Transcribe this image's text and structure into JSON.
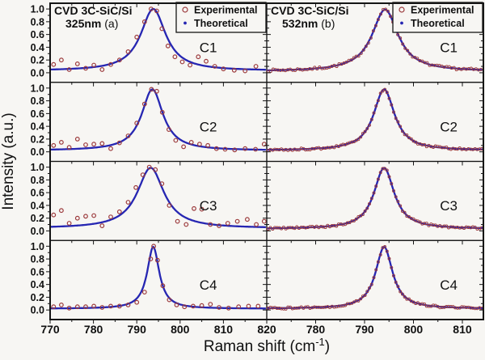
{
  "figure": {
    "y_axis_title": "Intensity (a.u.)",
    "x_axis_title_main": "Raman shift (cm",
    "x_axis_title_sup": "-1",
    "x_axis_title_close": ")"
  },
  "legend": {
    "entries": [
      {
        "label": "Experimental",
        "marker": "open-circle-icon"
      },
      {
        "label": "Theoretical",
        "marker": "dot-icon"
      }
    ]
  },
  "colors": {
    "experimental": "#9c3a3c",
    "theoretical": "#2626b2",
    "frame": "#151515",
    "text": "#101010",
    "legend_border": "#151515",
    "background": "#f7f6f3"
  },
  "chart_data": {
    "type": "line",
    "title": "",
    "ylabel": "Intensity (a.u.)",
    "xlabel": "Raman shift (cm-1)",
    "y_domain": [
      -0.15,
      1.09
    ],
    "y_ticks": [
      0.0,
      0.2,
      0.4,
      0.6,
      0.8,
      1.0
    ],
    "y_tick_labels": [
      "0.0",
      "0.2",
      "0.4",
      "0.6",
      "0.8",
      "1.0"
    ],
    "y_minor_step": 0.1,
    "row_labels": [
      "C1",
      "C2",
      "C3",
      "C4"
    ],
    "columns": [
      {
        "key": "a",
        "title_line1": "CVD 3C-SiC/Si",
        "title_line2": "325nm",
        "panel_tag": "(a)",
        "x_domain": [
          770,
          820
        ],
        "x_major_ticks": [
          770,
          780,
          790,
          800,
          810,
          820
        ],
        "x_tick_labels": [
          "770",
          "780",
          "790",
          "800",
          "810",
          "820"
        ],
        "x_minor_step": 5,
        "has_y_labels": true,
        "experimental_style": "sparse"
      },
      {
        "key": "b",
        "title_line1": "CVD 3C-SiC/Si",
        "title_line2": "532nm",
        "panel_tag": "(b)",
        "x_domain": [
          770,
          814.3
        ],
        "x_major_ticks": [
          780,
          790,
          800,
          810
        ],
        "x_tick_labels": [
          "780",
          "790",
          "800",
          "810"
        ],
        "x_minor_step": 5,
        "has_y_labels": false,
        "experimental_style": "dense"
      }
    ],
    "panels": [
      {
        "row": "C1",
        "column": "a",
        "lorentzian": {
          "center": 793.8,
          "fwhm": 7.0,
          "amplitude": 0.97,
          "baseline": 0.03
        },
        "experimental_points": [
          [
            770.8,
            0.13
          ],
          [
            772.6,
            0.2
          ],
          [
            774.4,
            0.05
          ],
          [
            776.3,
            0.14
          ],
          [
            778.2,
            0.07
          ],
          [
            780.1,
            0.12
          ],
          [
            782,
            0.05
          ],
          [
            784,
            0.13
          ],
          [
            786,
            0.2
          ],
          [
            788,
            0.33
          ],
          [
            790,
            0.56
          ],
          [
            791.8,
            0.8
          ],
          [
            793.3,
            1.0
          ],
          [
            794.6,
            0.97
          ],
          [
            795.8,
            0.69
          ],
          [
            797.2,
            0.42
          ],
          [
            798.8,
            0.25
          ],
          [
            800.5,
            0.17
          ],
          [
            802.3,
            0.12
          ],
          [
            804.2,
            0.25
          ],
          [
            806,
            0.18
          ],
          [
            808,
            0.1
          ],
          [
            810,
            0.06
          ],
          [
            812.5,
            0.04
          ],
          [
            815,
            0.03
          ],
          [
            817.5,
            0.1
          ]
        ]
      },
      {
        "row": "C2",
        "column": "a",
        "lorentzian": {
          "center": 793.6,
          "fwhm": 6.0,
          "amplitude": 0.96,
          "baseline": 0.02
        },
        "experimental_points": [
          [
            770.8,
            0.1
          ],
          [
            772.6,
            0.15
          ],
          [
            774.4,
            0.07
          ],
          [
            776.3,
            0.2
          ],
          [
            778.2,
            0.11
          ],
          [
            780.1,
            0.12
          ],
          [
            782,
            0.13
          ],
          [
            784,
            0.05
          ],
          [
            786,
            0.14
          ],
          [
            788,
            0.25
          ],
          [
            790,
            0.45
          ],
          [
            791.8,
            0.75
          ],
          [
            793.4,
            0.98
          ],
          [
            794.6,
            0.95
          ],
          [
            795.9,
            0.62
          ],
          [
            797.4,
            0.35
          ],
          [
            799,
            0.18
          ],
          [
            800.8,
            0.08
          ],
          [
            802.6,
            0.15
          ],
          [
            804.5,
            0.12
          ],
          [
            806.4,
            0.1
          ],
          [
            808.4,
            0.05
          ],
          [
            810.4,
            0.04
          ],
          [
            812.6,
            0.03
          ],
          [
            815,
            0.05
          ],
          [
            817.4,
            0.04
          ],
          [
            819.4,
            0.12
          ]
        ]
      },
      {
        "row": "C3",
        "column": "a",
        "lorentzian": {
          "center": 793.2,
          "fwhm": 7.5,
          "amplitude": 0.95,
          "baseline": 0.04
        },
        "experimental_points": [
          [
            770.8,
            0.25
          ],
          [
            772.6,
            0.32
          ],
          [
            774.4,
            0.12
          ],
          [
            776.3,
            0.2
          ],
          [
            778.2,
            0.23
          ],
          [
            780.1,
            0.24
          ],
          [
            782,
            0.08
          ],
          [
            784,
            0.22
          ],
          [
            786,
            0.3
          ],
          [
            788,
            0.45
          ],
          [
            789.8,
            0.68
          ],
          [
            791.4,
            0.88
          ],
          [
            792.9,
            1.0
          ],
          [
            794.3,
            0.96
          ],
          [
            795.8,
            0.74
          ],
          [
            797.5,
            0.4
          ],
          [
            799.4,
            0.15
          ],
          [
            801.4,
            0.1
          ],
          [
            803.2,
            0.35
          ],
          [
            805,
            0.34
          ],
          [
            807,
            0.1
          ],
          [
            809,
            0.08
          ],
          [
            811,
            0.12
          ],
          [
            813.2,
            0.15
          ],
          [
            815.5,
            0.18
          ],
          [
            817.6,
            0.1
          ],
          [
            819.4,
            0.15
          ]
        ]
      },
      {
        "row": "C4",
        "column": "a",
        "lorentzian": {
          "center": 793.8,
          "fwhm": 3.4,
          "amplitude": 0.97,
          "baseline": 0.02
        },
        "experimental_points": [
          [
            770.8,
            0.05
          ],
          [
            772.6,
            0.08
          ],
          [
            774.4,
            0.03
          ],
          [
            776.3,
            0.05
          ],
          [
            778.2,
            0.05
          ],
          [
            780.1,
            0.06
          ],
          [
            782,
            0.04
          ],
          [
            784,
            0.06
          ],
          [
            786,
            0.06
          ],
          [
            788,
            0.08
          ],
          [
            790,
            0.12
          ],
          [
            791.8,
            0.28
          ],
          [
            793.2,
            0.8
          ],
          [
            793.9,
            1.0
          ],
          [
            794.8,
            0.78
          ],
          [
            796,
            0.38
          ],
          [
            797.5,
            0.16
          ],
          [
            799.2,
            0.08
          ],
          [
            801,
            0.05
          ],
          [
            803,
            0.06
          ],
          [
            805,
            0.07
          ],
          [
            807,
            0.09
          ],
          [
            809,
            0.04
          ],
          [
            811.2,
            0.03
          ],
          [
            813.5,
            0.05
          ],
          [
            815.8,
            0.06
          ],
          [
            818,
            0.06
          ]
        ]
      },
      {
        "row": "C1",
        "column": "b",
        "lorentzian": {
          "center": 794.2,
          "fwhm": 6.5,
          "amplitude": 0.97,
          "baseline": 0.02
        },
        "experimental_gen": {
          "spacing": 0.5,
          "noise": 0.018,
          "seed": 7
        }
      },
      {
        "row": "C2",
        "column": "b",
        "lorentzian": {
          "center": 794.0,
          "fwhm": 5.2,
          "amplitude": 0.96,
          "baseline": 0.02
        },
        "experimental_gen": {
          "spacing": 0.45,
          "noise": 0.016,
          "seed": 8
        }
      },
      {
        "row": "C3",
        "column": "b",
        "lorentzian": {
          "center": 794.0,
          "fwhm": 5.0,
          "amplitude": 0.96,
          "baseline": 0.03
        },
        "experimental_gen": {
          "spacing": 0.45,
          "noise": 0.016,
          "seed": 9
        }
      },
      {
        "row": "C4",
        "column": "b",
        "lorentzian": {
          "center": 794.0,
          "fwhm": 4.2,
          "amplitude": 0.97,
          "baseline": 0.02
        },
        "experimental_gen": {
          "spacing": 0.45,
          "noise": 0.015,
          "seed": 10
        }
      }
    ]
  }
}
